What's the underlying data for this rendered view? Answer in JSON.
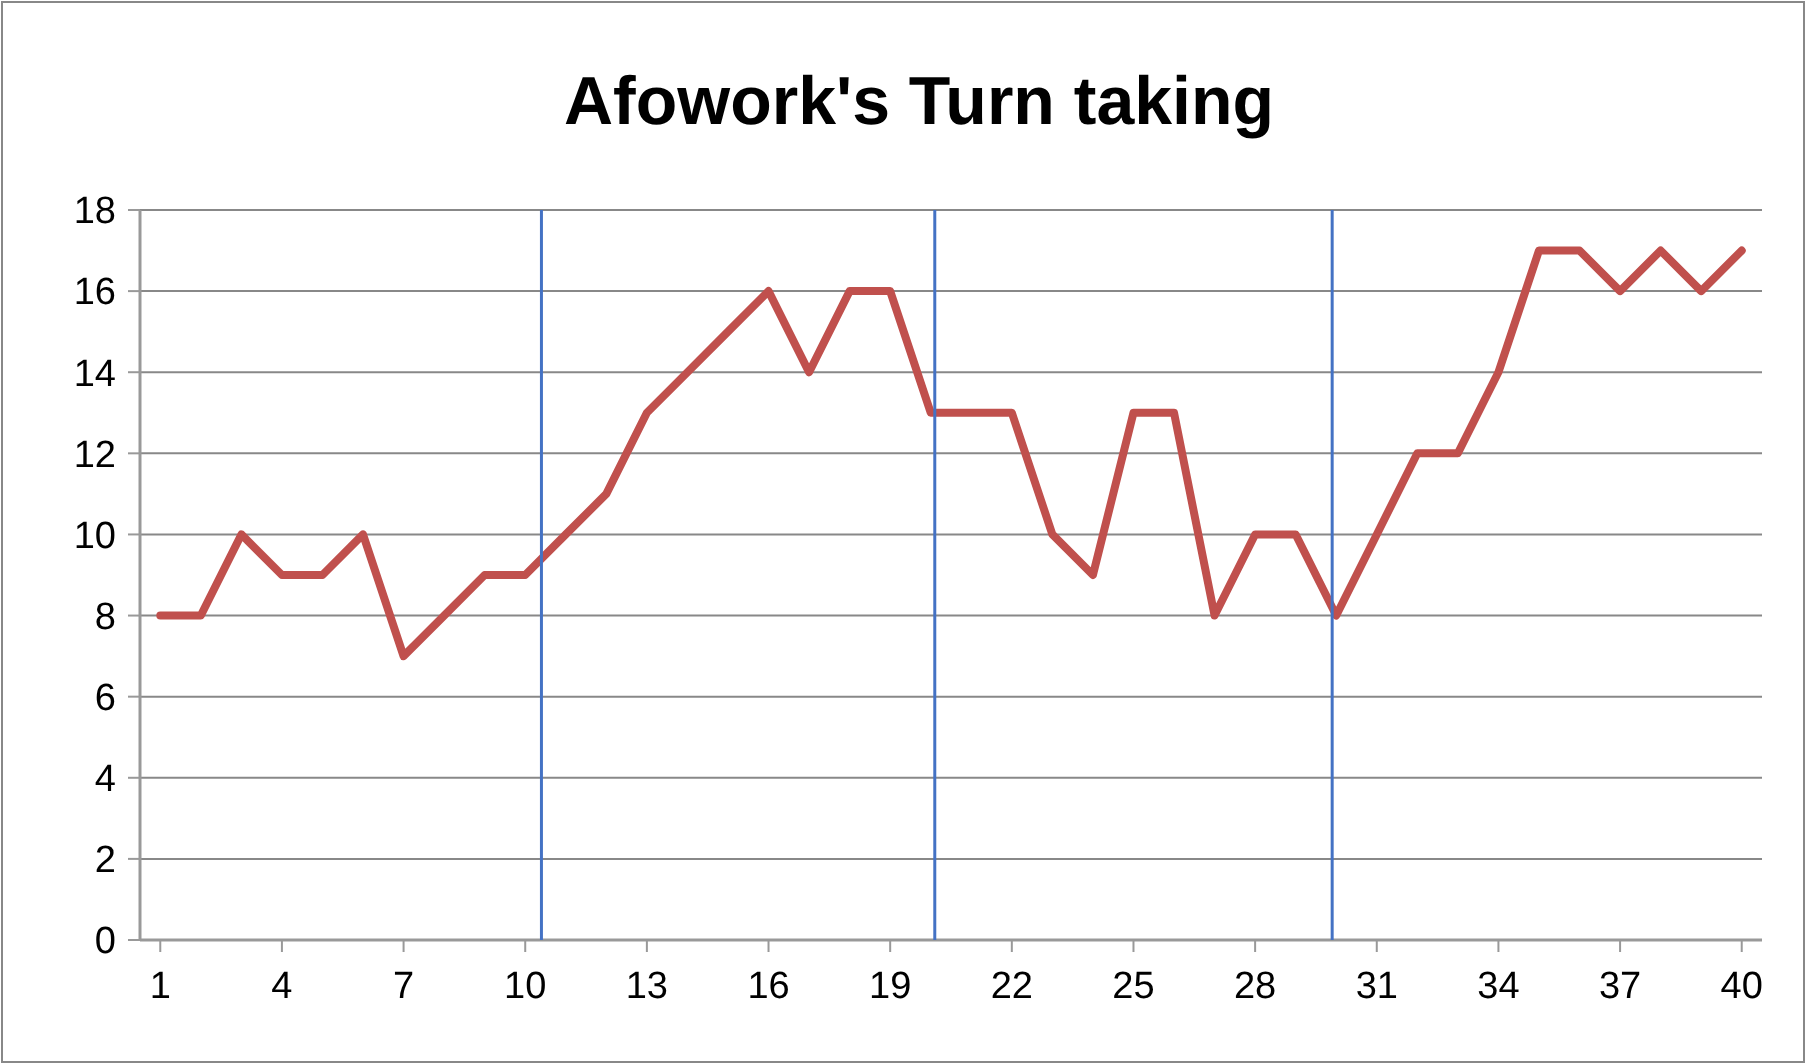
{
  "chart_data": {
    "type": "line",
    "title": "Afowork's Turn taking",
    "x": [
      1,
      2,
      3,
      4,
      5,
      6,
      7,
      8,
      9,
      10,
      11,
      12,
      13,
      14,
      15,
      16,
      17,
      18,
      19,
      20,
      21,
      22,
      23,
      24,
      25,
      26,
      27,
      28,
      29,
      30,
      31,
      32,
      33,
      34,
      35,
      36,
      37,
      38,
      39,
      40
    ],
    "series": [
      {
        "color": "#c0504d",
        "values": [
          8,
          8,
          10,
          9,
          9,
          10,
          7,
          8,
          9,
          9,
          10,
          11,
          13,
          14,
          15,
          16,
          14,
          16,
          16,
          13,
          13,
          13,
          10,
          9,
          13,
          13,
          8,
          10,
          10,
          8,
          10,
          12,
          12,
          14,
          17,
          17,
          16,
          17,
          16,
          17
        ]
      }
    ],
    "xlim": [
      0.5,
      40.5
    ],
    "xticks": [
      1,
      4,
      7,
      10,
      13,
      16,
      19,
      22,
      25,
      28,
      31,
      34,
      37,
      40
    ],
    "ylim": [
      0,
      18
    ],
    "yticks": [
      0,
      2,
      4,
      6,
      8,
      10,
      12,
      14,
      16,
      18
    ],
    "grid": "y",
    "marker": "none",
    "line_style": "solid",
    "ref_lines": [
      {
        "axis": "x",
        "value": 10.4,
        "color": "#4472c4"
      },
      {
        "axis": "x",
        "value": 20.1,
        "color": "#4472c4"
      },
      {
        "axis": "x",
        "value": 29.9,
        "color": "#4472c4"
      }
    ]
  }
}
